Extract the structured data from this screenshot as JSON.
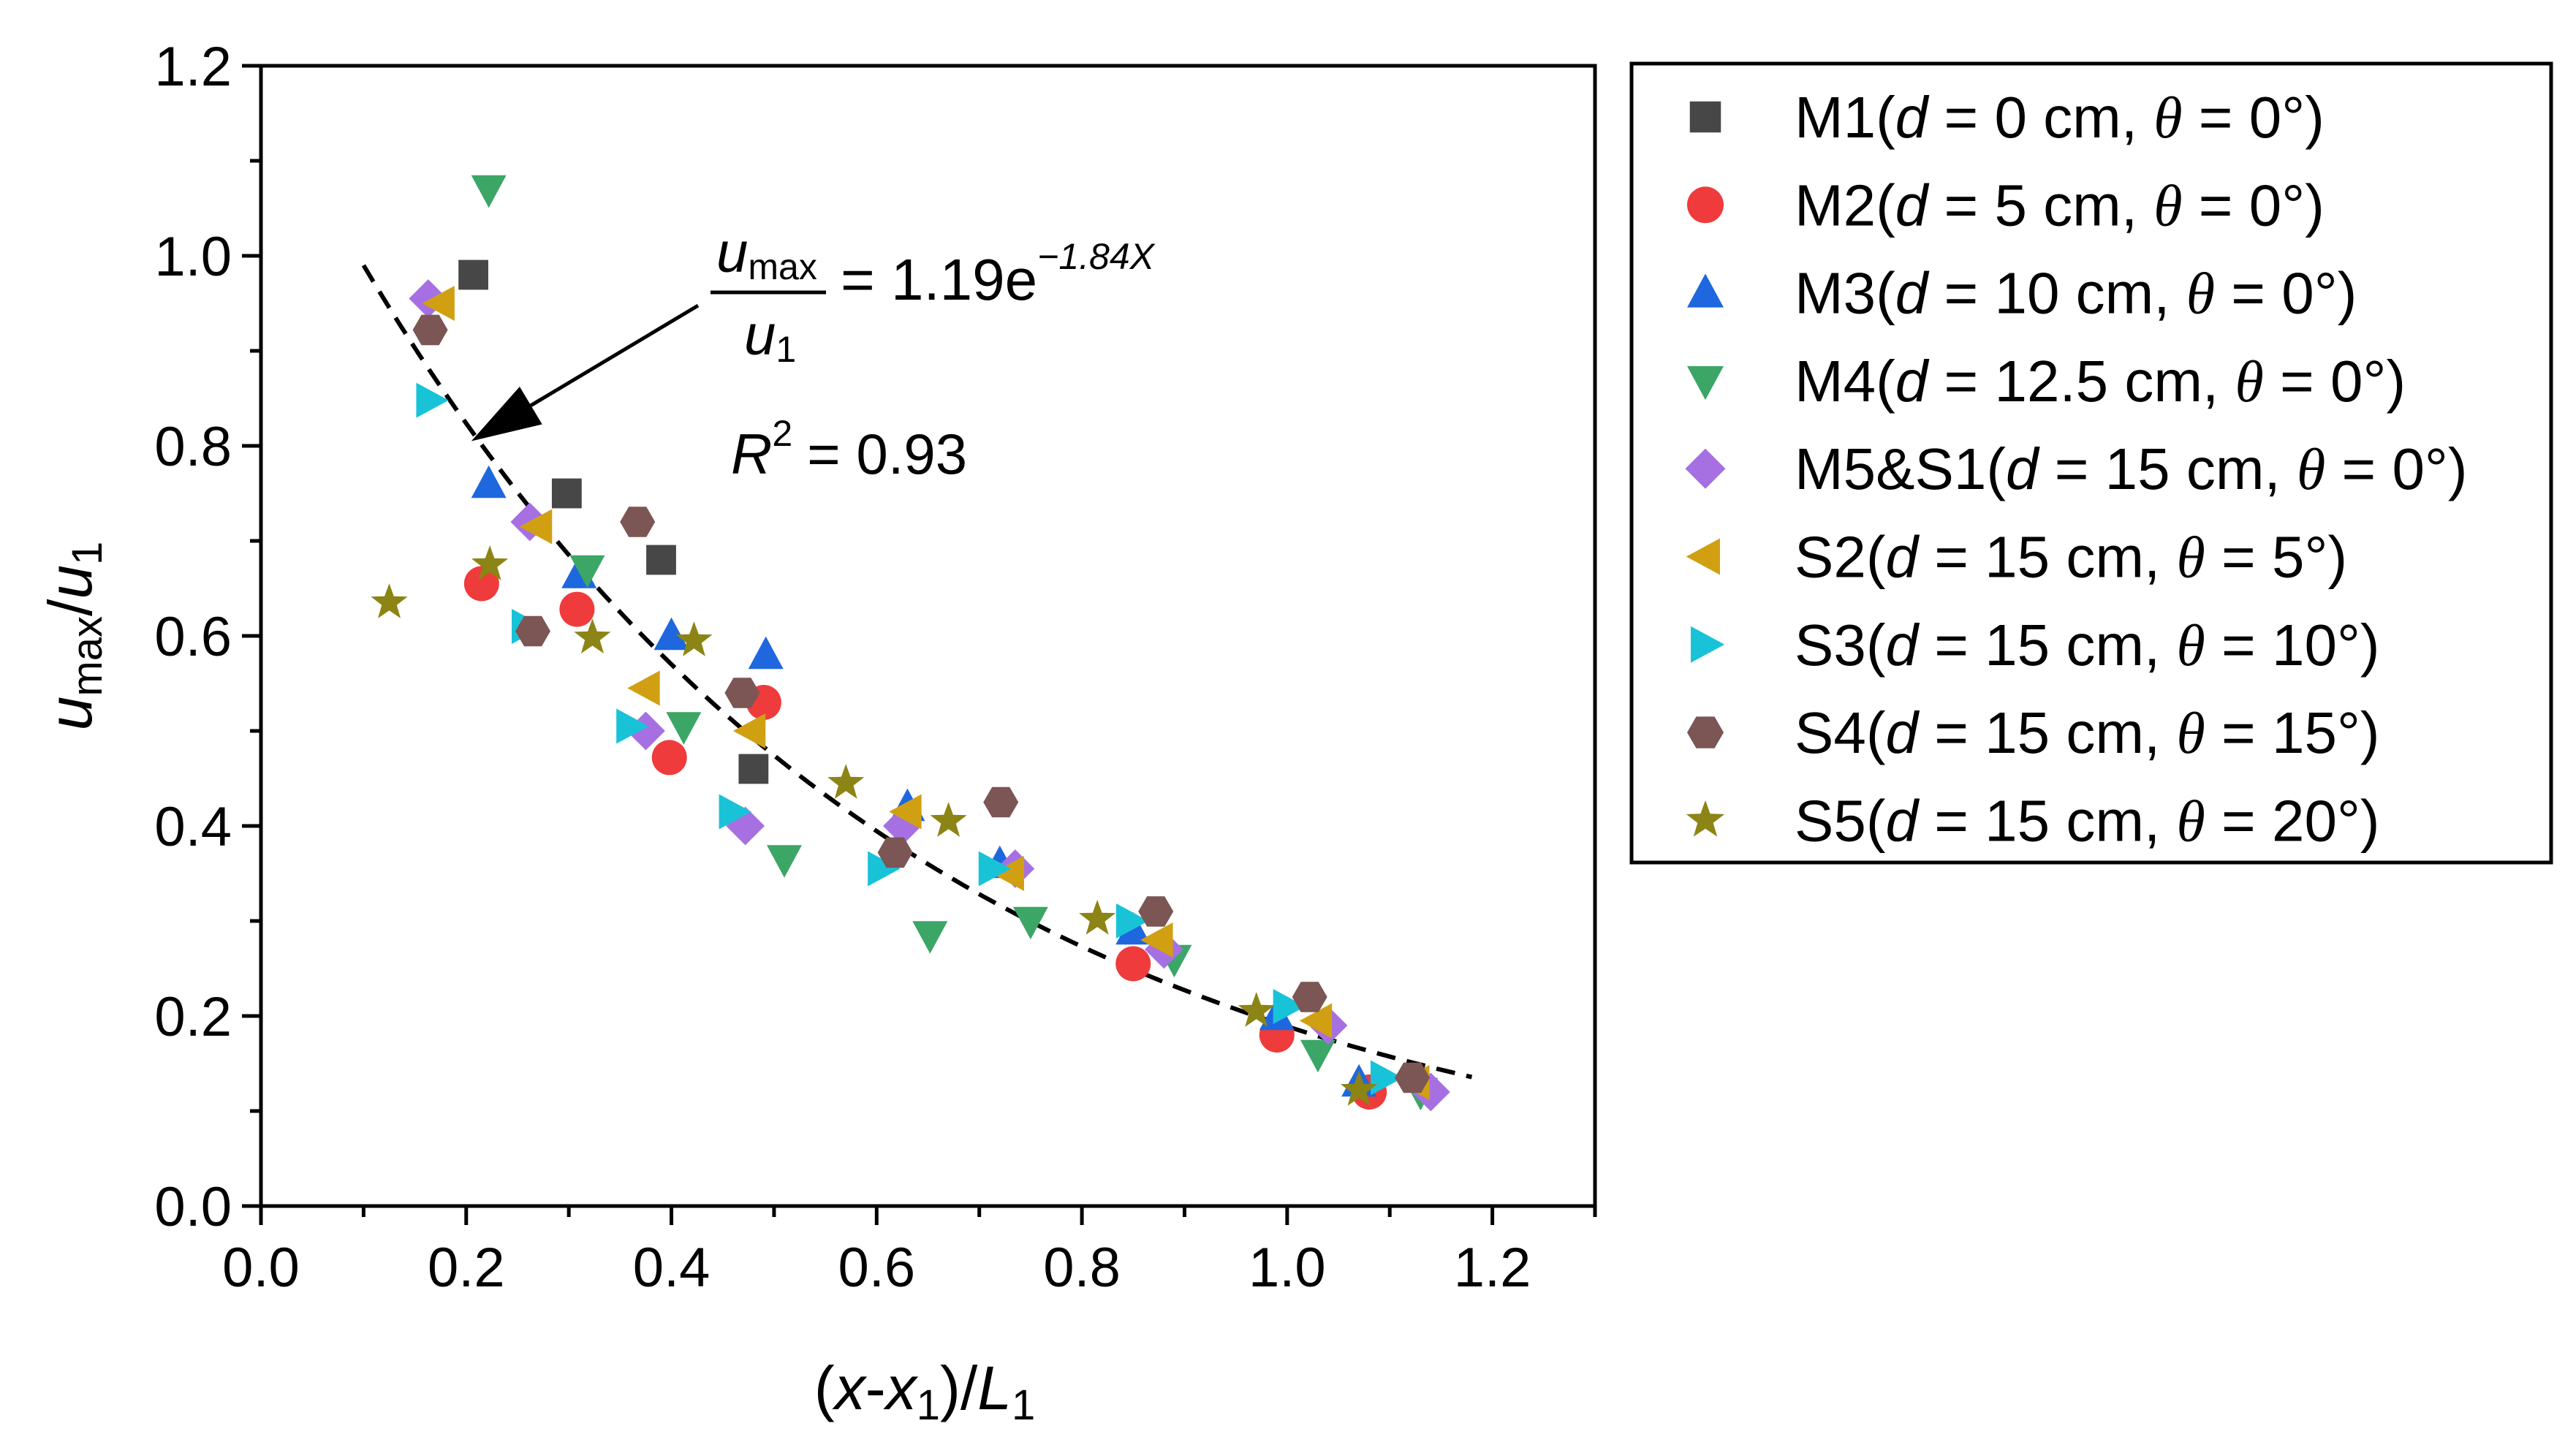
{
  "chart_data": {
    "type": "scatter",
    "xlabel": "(x-x1)/L1",
    "ylabel": "umax/u1",
    "xlim": [
      0.0,
      1.3
    ],
    "ylim": [
      0.0,
      1.2
    ],
    "xticks": [
      "0.0",
      "0.2",
      "0.4",
      "0.6",
      "0.8",
      "1.0",
      "1.2"
    ],
    "yticks": [
      "0.0",
      "0.2",
      "0.4",
      "0.6",
      "0.8",
      "1.0",
      "1.2"
    ],
    "legend_position": "outside-right-top",
    "series": [
      {
        "name": "M1(d = 0 cm, θ = 0°)",
        "label_prefix": "M1(",
        "label_d": "d",
        "label_mid": " = 0 cm, ",
        "label_theta": "θ",
        "label_suffix": " = 0°)",
        "marker": "square",
        "color": "#474747",
        "x": [
          0.207,
          0.298,
          0.39,
          0.48
        ],
        "y": [
          0.98,
          0.75,
          0.68,
          0.46
        ]
      },
      {
        "name": "M2(d = 5 cm, θ = 0°)",
        "label_prefix": "M2(",
        "label_d": "d",
        "label_mid": " = 5 cm, ",
        "label_theta": "θ",
        "label_suffix": " = 0°)",
        "marker": "circle",
        "color": "#ef3b3b",
        "x": [
          0.215,
          0.308,
          0.398,
          0.49,
          0.85,
          0.99,
          1.08
        ],
        "y": [
          0.655,
          0.628,
          0.472,
          0.53,
          0.255,
          0.18,
          0.12
        ]
      },
      {
        "name": "M3(d = 10 cm, θ = 0°)",
        "label_prefix": "M3(",
        "label_d": "d",
        "label_mid": " = 10 cm, ",
        "label_theta": "θ",
        "label_suffix": " = 0°)",
        "marker": "triangle-up",
        "color": "#1e67de",
        "x": [
          0.222,
          0.31,
          0.4,
          0.492,
          0.63,
          0.72,
          0.85,
          0.99,
          1.07
        ],
        "y": [
          0.76,
          0.665,
          0.6,
          0.58,
          0.42,
          0.36,
          0.29,
          0.2,
          0.13
        ]
      },
      {
        "name": "M4(d = 12.5 cm, θ = 0°)",
        "label_prefix": "M4(",
        "label_d": "d",
        "label_mid": " = 12.5 cm, ",
        "label_theta": "θ",
        "label_suffix": " = 0°)",
        "marker": "triangle-down",
        "color": "#3ba666",
        "x": [
          0.222,
          0.318,
          0.412,
          0.51,
          0.652,
          0.75,
          0.89,
          1.03,
          1.13
        ],
        "y": [
          1.07,
          0.67,
          0.505,
          0.365,
          0.285,
          0.3,
          0.26,
          0.16,
          0.12
        ]
      },
      {
        "name": "M5&S1(d = 15 cm, θ = 0°)",
        "label_prefix": "M5&S1(",
        "label_d": "d",
        "label_mid": " = 15 cm, ",
        "label_theta": "θ",
        "label_suffix": " = 0°)",
        "marker": "diamond",
        "color": "#a670e2",
        "x": [
          0.163,
          0.262,
          0.375,
          0.472,
          0.625,
          0.735,
          0.88,
          1.04,
          1.14
        ],
        "y": [
          0.955,
          0.72,
          0.5,
          0.4,
          0.4,
          0.355,
          0.27,
          0.19,
          0.12
        ]
      },
      {
        "name": "S2(d = 15 cm, θ = 5°)",
        "label_prefix": "S2(",
        "label_d": "d",
        "label_mid": " = 15 cm, ",
        "label_theta": "θ",
        "label_suffix": " = 5°)",
        "marker": "triangle-left",
        "color": "#d1a012",
        "x": [
          0.175,
          0.27,
          0.375,
          0.478,
          0.63,
          0.73,
          0.875,
          1.03,
          1.125
        ],
        "y": [
          0.95,
          0.715,
          0.545,
          0.5,
          0.415,
          0.35,
          0.28,
          0.195,
          0.13
        ]
      },
      {
        "name": "S3(d = 15 cm, θ = 10°)",
        "label_prefix": "S3(",
        "label_d": "d",
        "label_mid": " = 15 cm, ",
        "label_theta": "θ",
        "label_suffix": " = 10°)",
        "marker": "triangle-right",
        "color": "#18c3d8",
        "x": [
          0.165,
          0.258,
          0.36,
          0.46,
          0.605,
          0.713,
          0.847,
          1.0,
          1.095
        ],
        "y": [
          0.848,
          0.61,
          0.505,
          0.415,
          0.355,
          0.355,
          0.3,
          0.21,
          0.135
        ]
      },
      {
        "name": "S4(d = 15 cm, θ = 15°)",
        "label_prefix": "S4(",
        "label_d": "d",
        "label_mid": " = 15 cm, ",
        "label_theta": "θ",
        "label_suffix": " = 15°)",
        "marker": "hexagon",
        "color": "#7b5654",
        "x": [
          0.165,
          0.265,
          0.367,
          0.469,
          0.618,
          0.721,
          0.872,
          1.022,
          1.122
        ],
        "y": [
          0.922,
          0.605,
          0.72,
          0.54,
          0.372,
          0.425,
          0.31,
          0.22,
          0.135
        ]
      },
      {
        "name": "S5(d = 15 cm, θ = 20°)",
        "label_prefix": "S5(",
        "label_d": "d",
        "label_mid": " = 15 cm, ",
        "label_theta": "θ",
        "label_suffix": " = 20°)",
        "marker": "star",
        "color": "#8c8414",
        "x": [
          0.125,
          0.223,
          0.323,
          0.422,
          0.57,
          0.67,
          0.815,
          0.97,
          1.07
        ],
        "y": [
          0.635,
          0.675,
          0.598,
          0.595,
          0.445,
          0.405,
          0.302,
          0.205,
          0.122
        ]
      }
    ],
    "fit": {
      "a": 1.19,
      "b": -1.84,
      "x_range": [
        0.1,
        1.18
      ],
      "style": "dashed",
      "color": "#000000"
    },
    "annotation": {
      "num": "u",
      "num_sub": "max",
      "den": "u",
      "den_sub": "1",
      "eq_text": "= 1.19e",
      "exponent": "−1.84X",
      "r2_text": "R",
      "r2_sup": "2",
      "r2_value": "= 0.93",
      "arrow_target": [
        0.205,
        0.805
      ]
    }
  }
}
